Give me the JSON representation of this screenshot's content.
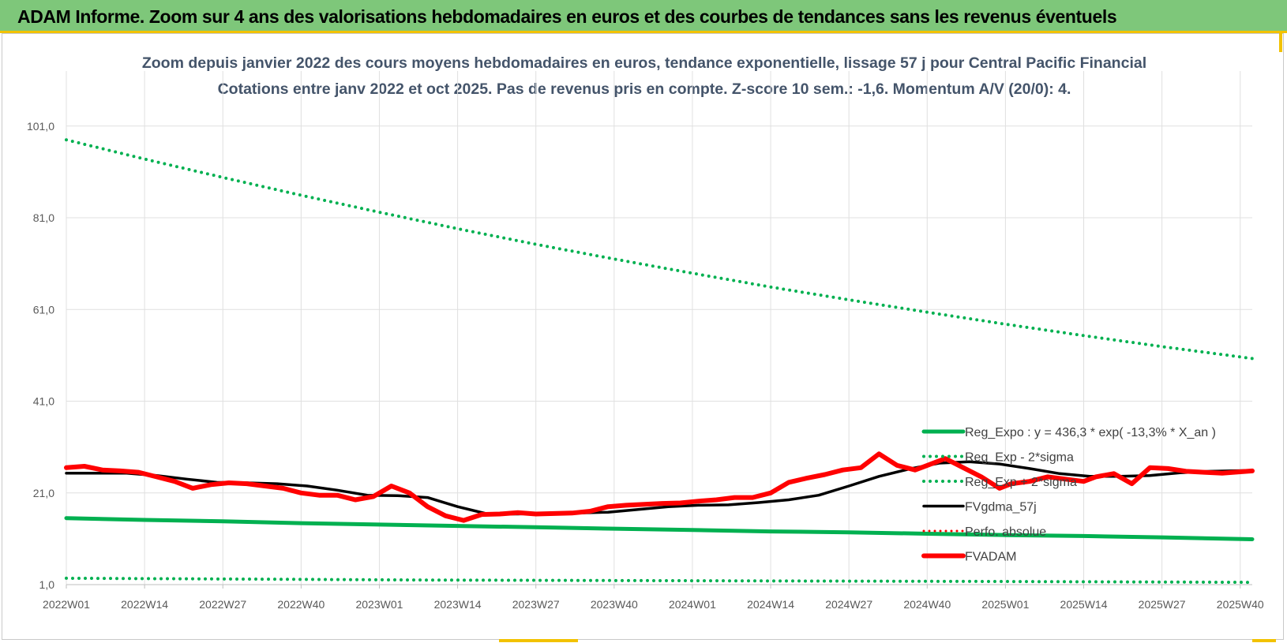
{
  "banner": {
    "title": "ADAM Informe. Zoom sur 4 ans des valorisations hebdomadaires en euros et des courbes de tendances sans les revenus éventuels"
  },
  "colors": {
    "banner_bg": "#7ec77a",
    "green": "#00b050",
    "black": "#000000",
    "red": "#ff0000",
    "grid": "#e0e0e0",
    "title": "#44546a"
  },
  "chart_data": {
    "type": "line",
    "title": "Zoom depuis janvier 2022 des cours moyens hebdomadaires en euros, tendance exponentielle, lissage 57 j pour Central Pacific Financial",
    "subtitle": "Cotations entre janv 2022 et oct 2025. Pas de revenus pris en compte. Z-score 10 sem.: -1,6.  Momentum A/V (20/0): 4.",
    "xlabel": "",
    "ylabel": "",
    "x_range": [
      0,
      197
    ],
    "ylim": [
      1,
      113
    ],
    "y_ticks": [
      1,
      21,
      41,
      61,
      81,
      101
    ],
    "y_tick_labels": [
      "1,0",
      "21,0",
      "41,0",
      "61,0",
      "81,0",
      "101,0"
    ],
    "x_ticks": [
      0,
      13,
      26,
      39,
      52,
      65,
      78,
      91,
      104,
      117,
      130,
      143,
      156,
      169,
      182,
      195
    ],
    "x_tick_labels": [
      "2022W01",
      "2022W14",
      "2022W27",
      "2022W40",
      "2023W01",
      "2023W14",
      "2023W27",
      "2023W40",
      "2024W01",
      "2024W14",
      "2024W27",
      "2024W40",
      "2025W01",
      "2025W14",
      "2025W27",
      "2025W40"
    ],
    "legend": [
      {
        "label": "Reg_Expo : y = 436,3 * exp( -13,3% *  X_an )",
        "style": "solid-green"
      },
      {
        "label": "Reg_Exp - 2*sigma",
        "style": "dotted-green"
      },
      {
        "label": "Reg_Exp + 2*sigma",
        "style": "dotted-green"
      },
      {
        "label": "FVgdma_57j",
        "style": "solid-black"
      },
      {
        "label": "Perfo. absolue",
        "style": "dotted-red"
      },
      {
        "label": "FVADAM",
        "style": "solid-red"
      }
    ],
    "series": [
      {
        "name": "Reg_Expo",
        "style": "solid-green",
        "x": [
          0,
          13,
          26,
          39,
          52,
          65,
          78,
          91,
          104,
          117,
          130,
          143,
          156,
          169,
          182,
          197
        ],
        "y": [
          15.5,
          15.1,
          14.8,
          14.4,
          14.1,
          13.8,
          13.5,
          13.2,
          12.9,
          12.6,
          12.4,
          12.1,
          11.8,
          11.6,
          11.3,
          10.9
        ]
      },
      {
        "name": "Reg_Exp - 2*sigma",
        "style": "dotted-green",
        "x": [
          0,
          30,
          60,
          90,
          120,
          150,
          197
        ],
        "y": [
          2.4,
          2.2,
          2.0,
          1.9,
          1.8,
          1.7,
          1.5
        ]
      },
      {
        "name": "Reg_Exp + 2*sigma",
        "style": "dotted-green",
        "x": [
          0,
          13,
          26,
          39,
          52,
          65,
          78,
          91,
          104,
          117,
          130,
          143,
          156,
          169,
          182,
          197
        ],
        "y": [
          98,
          93.8,
          89.8,
          85.9,
          82.2,
          78.6,
          75.2,
          72,
          68.9,
          65.9,
          63.1,
          60.4,
          57.8,
          55.3,
          52.9,
          50.3
        ]
      },
      {
        "name": "FVgdma_57j",
        "style": "solid-black",
        "x": [
          0,
          10,
          15,
          20,
          25,
          30,
          35,
          40,
          45,
          50,
          55,
          60,
          65,
          70,
          75,
          80,
          85,
          90,
          95,
          100,
          105,
          110,
          115,
          120,
          125,
          130,
          135,
          140,
          145,
          150,
          155,
          160,
          165,
          170,
          175,
          180,
          185,
          190,
          197
        ],
        "y": [
          25.3,
          25.3,
          24.8,
          24,
          23.3,
          23.2,
          23,
          22.5,
          21.6,
          20.5,
          20.4,
          20,
          18,
          16.4,
          16.4,
          16.6,
          16.6,
          16.8,
          17.4,
          18,
          18.3,
          18.4,
          18.9,
          19.5,
          20.5,
          22.5,
          24.6,
          26.2,
          27.5,
          27.8,
          27.3,
          26.3,
          25.2,
          24.6,
          24.6,
          24.8,
          25.4,
          25.7,
          25.9
        ]
      },
      {
        "name": "FVADAM",
        "style": "solid-red",
        "x": [
          0,
          3,
          6,
          9,
          12,
          15,
          18,
          21,
          24,
          27,
          30,
          33,
          36,
          39,
          42,
          45,
          48,
          51,
          54,
          57,
          60,
          63,
          66,
          69,
          72,
          75,
          78,
          81,
          84,
          87,
          90,
          93,
          96,
          99,
          102,
          105,
          108,
          111,
          114,
          117,
          120,
          123,
          126,
          129,
          132,
          135,
          138,
          141,
          143,
          146,
          149,
          152,
          155,
          157,
          160,
          163,
          166,
          169,
          171,
          174,
          177,
          180,
          183,
          186,
          189,
          192,
          195,
          197
        ],
        "y": [
          26.5,
          26.8,
          26,
          25.8,
          25.5,
          24.5,
          23.5,
          22,
          22.8,
          23.2,
          23,
          22.5,
          22,
          21,
          20.5,
          20.5,
          19.5,
          20.2,
          22.5,
          21,
          18,
          16,
          15,
          16.3,
          16.4,
          16.7,
          16.4,
          16.5,
          16.6,
          17,
          18,
          18.3,
          18.5,
          18.7,
          18.8,
          19.2,
          19.5,
          20,
          20,
          21,
          23.3,
          24.2,
          25,
          26,
          26.5,
          29.5,
          27,
          26,
          27,
          28.5,
          26.5,
          24.5,
          22,
          23,
          23.5,
          24.5,
          24,
          23.5,
          24.5,
          25.2,
          23,
          26.5,
          26.3,
          25.7,
          25.5,
          25.3,
          25.6,
          25.8
        ]
      }
    ]
  }
}
